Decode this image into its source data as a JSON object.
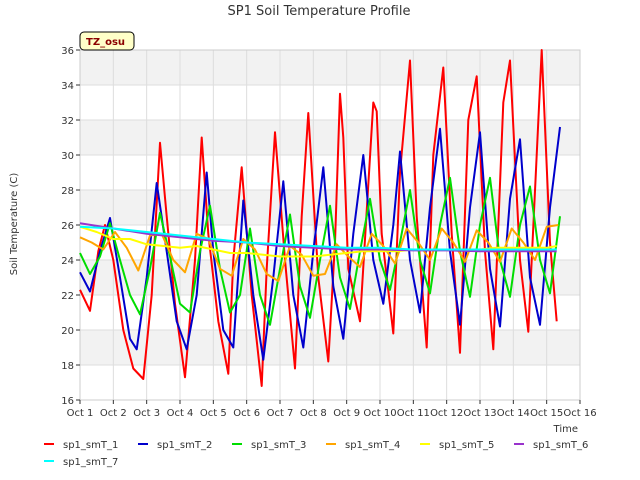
{
  "chart_data": {
    "type": "line",
    "title": "SP1 Soil Temperature Profile",
    "xlabel": "Time",
    "ylabel": "Soil Temperature (C)",
    "badge": "TZ_osu",
    "x_ticks": [
      "Oct 1",
      "Oct 2",
      "Oct 3",
      "Oct 4",
      "Oct 5",
      "Oct 6",
      "Oct 7",
      "Oct 8",
      "Oct 9",
      "Oct 10",
      "Oct 11",
      "Oct 12",
      "Oct 13",
      "Oct 14",
      "Oct 15",
      "Oct 16"
    ],
    "y_ticks": [
      16,
      18,
      20,
      22,
      24,
      26,
      28,
      30,
      32,
      34,
      36
    ],
    "xlim": [
      0,
      15
    ],
    "ylim": [
      16,
      36
    ],
    "grid": true,
    "legend_position": "bottom",
    "series": [
      {
        "name": "sp1_smT_1",
        "color": "#ff0000",
        "x": [
          0,
          0.3,
          0.55,
          0.75,
          1.0,
          1.3,
          1.6,
          1.9,
          2.15,
          2.4,
          2.6,
          2.85,
          3.15,
          3.45,
          3.65,
          3.85,
          4.15,
          4.45,
          4.6,
          4.85,
          5.15,
          5.45,
          5.6,
          5.85,
          6.15,
          6.45,
          6.65,
          6.85,
          7.15,
          7.45,
          7.65,
          7.8,
          7.9,
          8.05,
          8.4,
          8.8,
          8.9,
          9.05,
          9.4,
          9.6,
          9.9,
          10.1,
          10.4,
          10.6,
          10.9,
          11.15,
          11.4,
          11.65,
          11.9,
          12.15,
          12.4,
          12.7,
          12.9,
          13.2,
          13.45,
          13.7,
          13.85,
          14.1,
          14.3
        ],
        "y": [
          22.3,
          21.1,
          24.5,
          26.0,
          24.0,
          20.0,
          17.8,
          17.2,
          22.0,
          30.7,
          26.5,
          21.5,
          17.3,
          24.0,
          31.0,
          25.5,
          20.5,
          17.5,
          24.0,
          29.3,
          22.0,
          16.8,
          23.5,
          31.3,
          24.0,
          17.8,
          26.5,
          32.4,
          23.0,
          18.2,
          25.0,
          33.5,
          31.0,
          23.5,
          20.5,
          33.0,
          32.5,
          25.5,
          19.8,
          29.0,
          35.4,
          26.5,
          19.0,
          30.0,
          35.0,
          25.5,
          18.7,
          32.0,
          34.5,
          24.5,
          18.9,
          33.0,
          35.4,
          24.0,
          19.9,
          30.0,
          36.0,
          25.0,
          20.5
        ]
      },
      {
        "name": "sp1_smT_2",
        "color": "#0000cc",
        "x": [
          0,
          0.3,
          0.6,
          0.9,
          1.2,
          1.5,
          1.7,
          2.0,
          2.3,
          2.6,
          2.9,
          3.2,
          3.5,
          3.8,
          4.0,
          4.3,
          4.6,
          4.9,
          5.2,
          5.5,
          5.8,
          6.1,
          6.4,
          6.7,
          7.0,
          7.3,
          7.6,
          7.9,
          8.2,
          8.5,
          8.8,
          9.1,
          9.4,
          9.6,
          9.9,
          10.2,
          10.5,
          10.8,
          11.1,
          11.4,
          11.7,
          12.0,
          12.3,
          12.6,
          12.9,
          13.2,
          13.5,
          13.8,
          14.1,
          14.4
        ],
        "y": [
          23.3,
          22.2,
          24.5,
          26.4,
          23.0,
          19.5,
          18.9,
          23.0,
          28.4,
          24.5,
          20.5,
          18.9,
          22.0,
          29.0,
          24.5,
          20.0,
          19.0,
          27.4,
          22.0,
          18.3,
          23.0,
          28.5,
          22.0,
          19.0,
          24.5,
          29.3,
          22.5,
          19.5,
          25.5,
          30.0,
          24.0,
          21.5,
          26.0,
          30.2,
          24.0,
          21.0,
          27.0,
          31.5,
          24.5,
          20.3,
          27.0,
          31.3,
          23.5,
          20.2,
          27.5,
          30.9,
          23.0,
          20.3,
          27.0,
          31.6
        ]
      },
      {
        "name": "sp1_smT_3",
        "color": "#00dd00",
        "x": [
          0,
          0.3,
          0.6,
          0.9,
          1.2,
          1.5,
          1.8,
          2.1,
          2.4,
          2.7,
          3.0,
          3.3,
          3.6,
          3.9,
          4.2,
          4.5,
          4.8,
          5.1,
          5.4,
          5.7,
          6.0,
          6.3,
          6.6,
          6.9,
          7.2,
          7.5,
          7.8,
          8.1,
          8.4,
          8.7,
          9.0,
          9.3,
          9.6,
          9.9,
          10.2,
          10.5,
          10.8,
          11.1,
          11.4,
          11.7,
          12.0,
          12.3,
          12.6,
          12.9,
          13.2,
          13.5,
          13.8,
          14.1,
          14.4
        ],
        "y": [
          24.4,
          23.2,
          24.2,
          26.1,
          24.0,
          22.0,
          20.9,
          23.5,
          26.7,
          24.2,
          21.5,
          21.0,
          24.5,
          27.1,
          23.5,
          21.0,
          22.0,
          25.8,
          22.0,
          20.3,
          23.5,
          26.6,
          22.5,
          20.7,
          24.0,
          27.1,
          23.0,
          21.2,
          24.5,
          27.5,
          24.0,
          22.3,
          25.0,
          28.0,
          24.0,
          22.1,
          26.0,
          28.7,
          24.5,
          21.9,
          26.0,
          28.7,
          24.0,
          21.9,
          26.0,
          28.2,
          24.0,
          22.1,
          26.5
        ]
      },
      {
        "name": "sp1_smT_4",
        "color": "#ffa500",
        "x": [
          0,
          0.35,
          0.7,
          1.05,
          1.4,
          1.75,
          2.1,
          2.45,
          2.8,
          3.15,
          3.5,
          3.85,
          4.2,
          4.55,
          4.9,
          5.25,
          5.6,
          5.95,
          6.3,
          6.65,
          7.0,
          7.35,
          7.7,
          8.05,
          8.4,
          8.75,
          9.1,
          9.45,
          9.8,
          10.15,
          10.5,
          10.85,
          11.2,
          11.55,
          11.9,
          12.25,
          12.6,
          12.95,
          13.3,
          13.65,
          14.0,
          14.35
        ],
        "y": [
          25.3,
          25.0,
          24.6,
          25.6,
          24.7,
          23.4,
          25.4,
          25.5,
          24.0,
          23.3,
          25.5,
          25.2,
          23.5,
          23.1,
          25.2,
          24.6,
          23.2,
          22.8,
          24.8,
          24.3,
          23.1,
          23.2,
          24.9,
          24.2,
          23.6,
          25.5,
          24.8,
          23.8,
          25.8,
          25.0,
          24.0,
          25.8,
          25.0,
          23.9,
          25.7,
          25.0,
          23.9,
          25.8,
          25.0,
          24.0,
          25.9,
          26.0
        ]
      },
      {
        "name": "sp1_smT_5",
        "color": "#ffff00",
        "x": [
          0,
          0.5,
          1.0,
          1.5,
          2.0,
          2.5,
          3.0,
          3.5,
          4.0,
          4.5,
          5.0,
          5.5,
          6.0,
          6.5,
          7.0,
          7.5,
          8.0,
          8.5,
          9.0,
          9.5,
          10.0,
          10.5,
          11.0,
          11.5,
          12.0,
          12.5,
          13.0,
          13.5,
          14.0,
          14.3
        ],
        "y": [
          25.9,
          25.6,
          25.2,
          25.2,
          24.9,
          24.8,
          24.7,
          24.8,
          24.6,
          24.4,
          24.4,
          24.3,
          24.2,
          24.2,
          24.2,
          24.3,
          24.4,
          24.5,
          24.5,
          24.5,
          24.6,
          24.6,
          24.6,
          24.6,
          24.6,
          24.7,
          24.7,
          24.7,
          24.7,
          24.8
        ]
      },
      {
        "name": "sp1_smT_6",
        "color": "#9932cc",
        "x": [
          0,
          1,
          2,
          3,
          4,
          5,
          6,
          7,
          8,
          9,
          10,
          11,
          12,
          13,
          14,
          14.3
        ],
        "y": [
          26.1,
          25.8,
          25.5,
          25.3,
          25.1,
          25.0,
          24.8,
          24.7,
          24.6,
          24.6,
          24.55,
          24.55,
          24.5,
          24.5,
          24.5,
          24.5
        ]
      },
      {
        "name": "sp1_smT_7",
        "color": "#00ffff",
        "x": [
          0,
          1,
          2,
          3,
          4,
          5,
          6,
          7,
          8,
          9,
          10,
          11,
          12,
          13,
          14,
          14.3
        ],
        "y": [
          25.9,
          25.8,
          25.6,
          25.4,
          25.2,
          25.0,
          24.9,
          24.8,
          24.7,
          24.7,
          24.6,
          24.6,
          24.6,
          24.6,
          24.6,
          24.6
        ]
      }
    ]
  }
}
